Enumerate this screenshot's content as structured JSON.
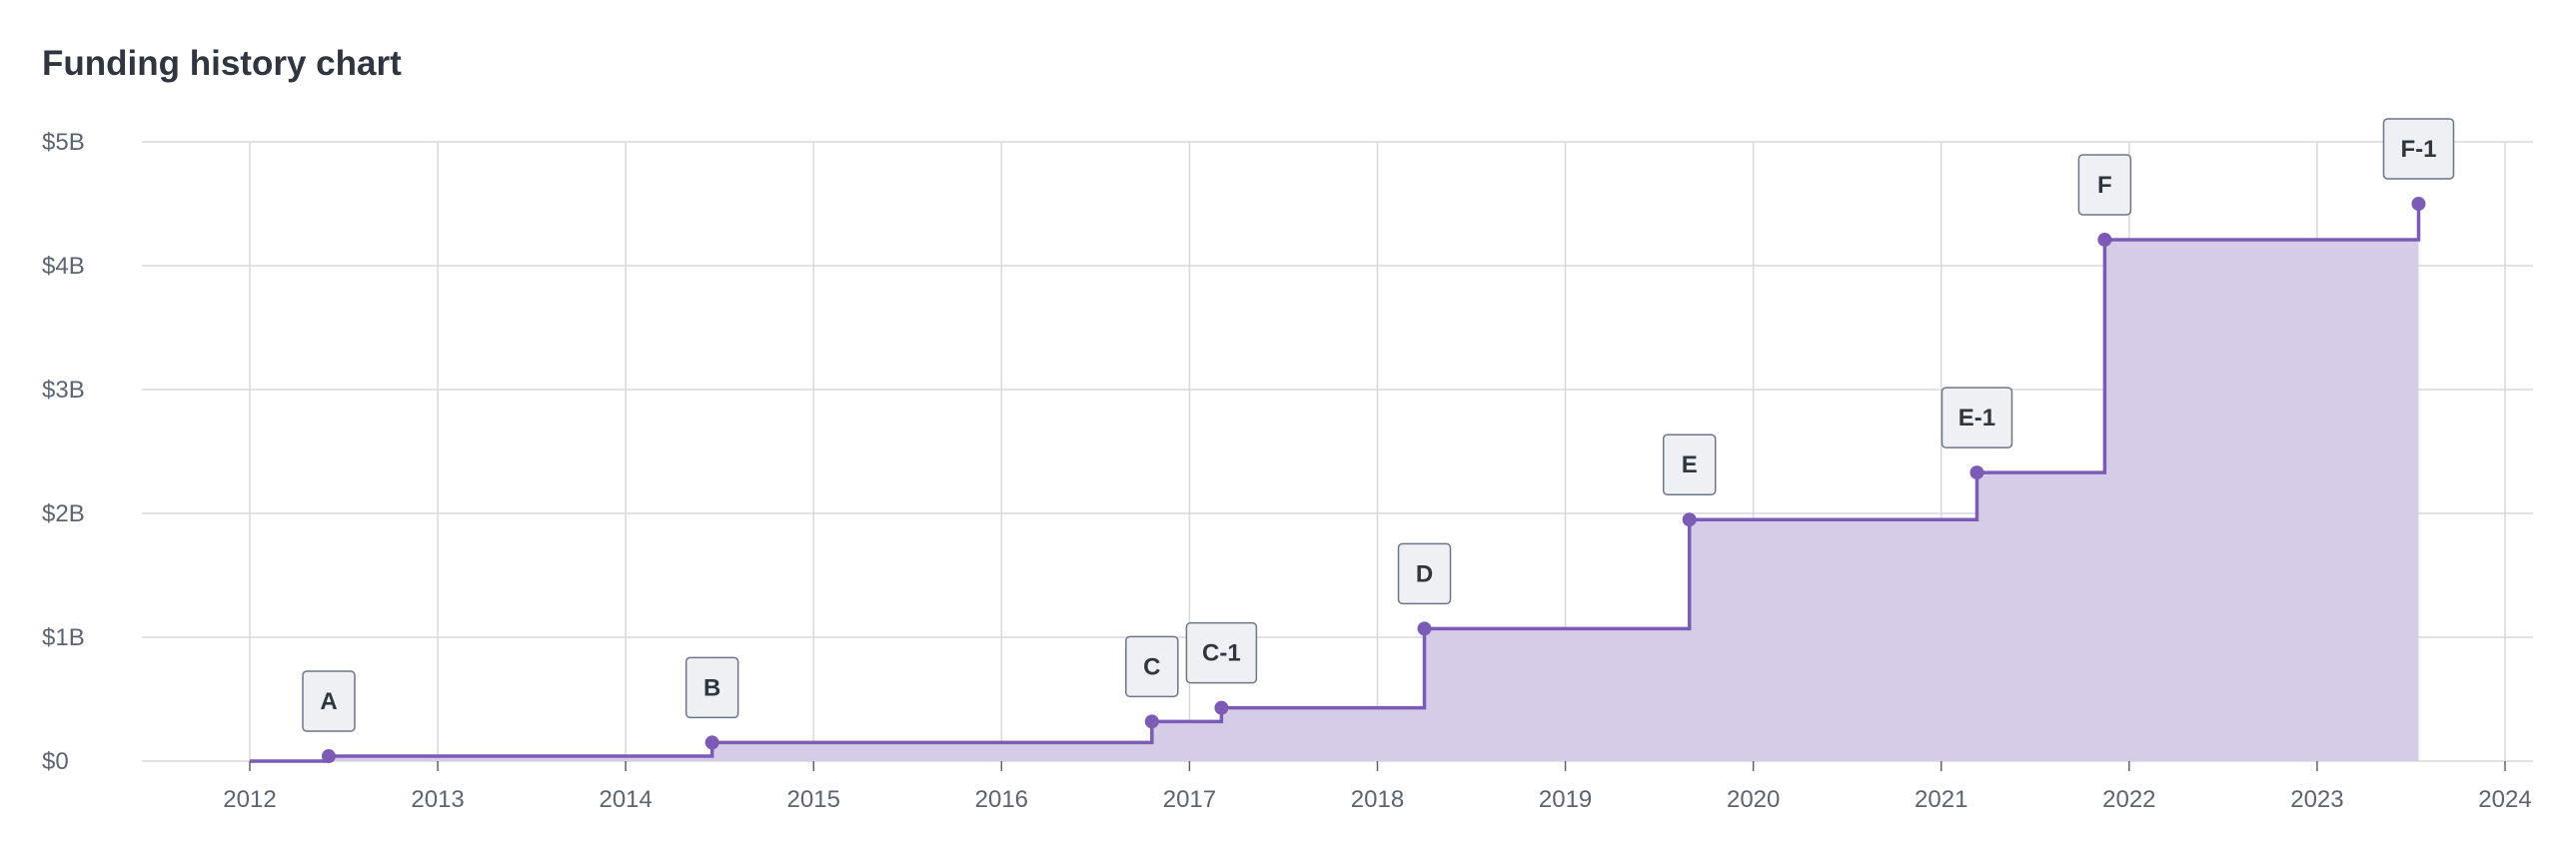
{
  "title": "Funding history chart",
  "colors": {
    "line": "#7b5bb6",
    "fill": "#d6cce8",
    "grid": "#d8d8dc",
    "label_bg": "#eef0f4",
    "label_border": "#6b7686",
    "text": "#2f3640",
    "tick_text": "#5b6473"
  },
  "chart_data": {
    "type": "area",
    "step": true,
    "x_tick_labels": [
      "2012",
      "2013",
      "2014",
      "2015",
      "2016",
      "2017",
      "2018",
      "2019",
      "2020",
      "2021",
      "2022",
      "2023",
      "2024"
    ],
    "y_tick_labels": [
      "$0",
      "$1B",
      "$2B",
      "$3B",
      "$4B",
      "$5B"
    ],
    "y_ticks": [
      0,
      1,
      2,
      3,
      4,
      5
    ],
    "xlim": [
      2012,
      2024
    ],
    "ylim": [
      0,
      5
    ],
    "ylabel_unit": "B",
    "series": [
      {
        "points": [
          {
            "label": "A",
            "x": 2012.42,
            "y": 0.04
          },
          {
            "label": "B",
            "x": 2014.46,
            "y": 0.15
          },
          {
            "label": "C",
            "x": 2016.8,
            "y": 0.32
          },
          {
            "label": "C-1",
            "x": 2017.17,
            "y": 0.43
          },
          {
            "label": "D",
            "x": 2018.25,
            "y": 1.07
          },
          {
            "label": "E",
            "x": 2019.66,
            "y": 1.95
          },
          {
            "label": "E-1",
            "x": 2021.19,
            "y": 2.33
          },
          {
            "label": "F",
            "x": 2021.87,
            "y": 4.21
          },
          {
            "label": "F-1",
            "x": 2023.54,
            "y": 4.5
          }
        ]
      }
    ],
    "grid": true,
    "legend": "none"
  }
}
